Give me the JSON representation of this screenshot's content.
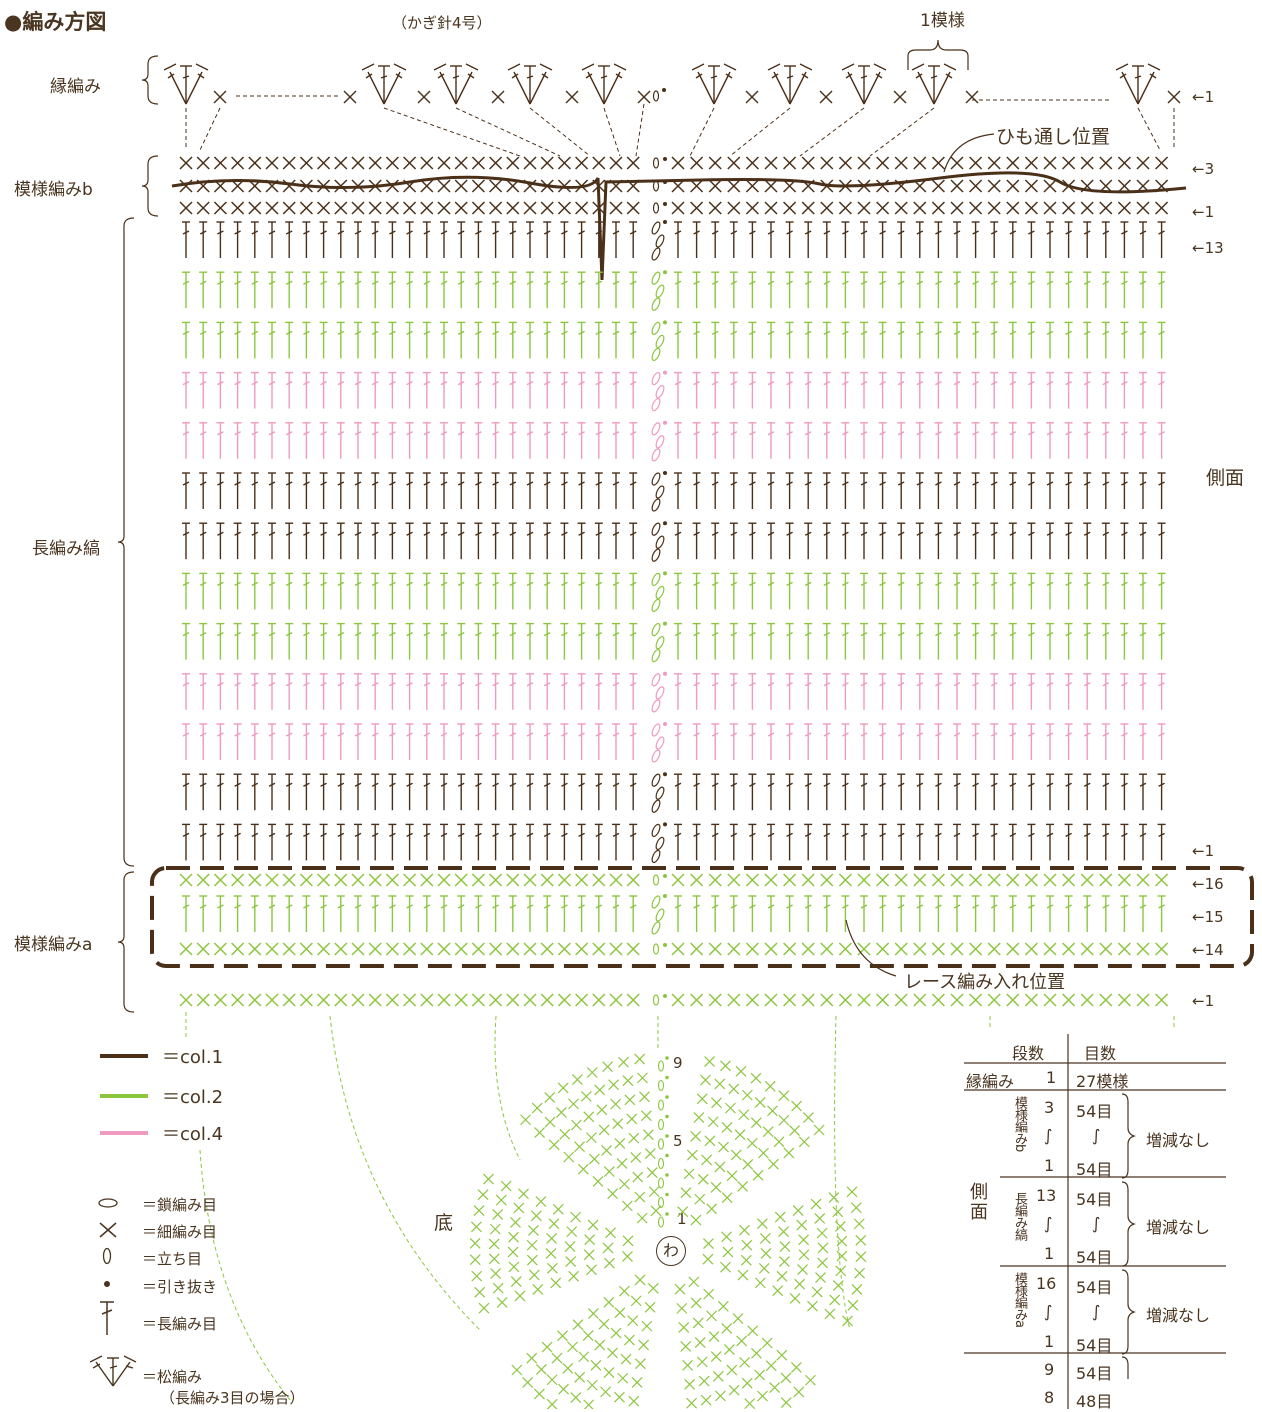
{
  "header": {
    "title": "●編み方図",
    "hook_note": "（かぎ針4号）",
    "repeat_label": "1模様"
  },
  "sections": {
    "edging": "縁編み",
    "pattern_b": "模様編みb",
    "dc_stripe": "長編み縞",
    "pattern_a": "模様編みa",
    "side": "側面",
    "bottom": "底"
  },
  "annotations": {
    "drawstring": "ひも通し位置",
    "lace_insert": "レース編み入れ位置"
  },
  "row_markers": {
    "edging_1": "←1",
    "b_3": "←3",
    "b_1": "←1",
    "dc_13": "←13",
    "dc_1": "←1",
    "a_16": "←16",
    "a_15": "←15",
    "a_14": "←14",
    "a_1": "←1"
  },
  "bottom_round_labels": {
    "r9": "9",
    "r5": "5",
    "r1": "1",
    "ring": "わ"
  },
  "colors": {
    "col1": "#4b3019",
    "col2": "#8cc63f",
    "col4": "#ef9ac0",
    "text": "#4a3520"
  },
  "legend": {
    "col1": "＝col.1",
    "col2": "＝col.2",
    "col4": "＝col.4"
  },
  "symbols": [
    {
      "icon": "chain-stitch-icon",
      "label": "＝鎖編み目"
    },
    {
      "icon": "single-crochet-icon",
      "label": "＝細編み目"
    },
    {
      "icon": "turning-chain-icon",
      "label": "＝立ち目"
    },
    {
      "icon": "slip-stitch-icon",
      "label": "＝引き抜き"
    },
    {
      "icon": "double-crochet-icon",
      "label": "＝長編み目"
    },
    {
      "icon": "shell-stitch-icon",
      "label": "＝松編み"
    }
  ],
  "shell_note": "（長編み3目の場合）",
  "count_table": {
    "header_rows": "段数",
    "header_stitches": "目数",
    "edging_row": {
      "name": "縁編み",
      "rows": "1",
      "stitches": "27模様"
    },
    "side_label": "側面",
    "groups": [
      {
        "name": "模様編みb",
        "rows": [
          "3",
          "∫",
          "1"
        ],
        "stitches": [
          "54目",
          "∫",
          "54目"
        ],
        "note": "増減なし"
      },
      {
        "name": "長編み縞",
        "rows": [
          "13",
          "∫",
          "1"
        ],
        "stitches": [
          "54目",
          "∫",
          "54目"
        ],
        "note": "増減なし"
      },
      {
        "name": "模様編みa",
        "rows": [
          "16",
          "∫",
          "1"
        ],
        "stitches": [
          "54目",
          "∫",
          "54目"
        ],
        "note": "増減なし"
      }
    ],
    "bottom_rows": [
      {
        "rows": "9",
        "stitches": "54目"
      },
      {
        "rows": "8",
        "stitches": "48目"
      }
    ]
  }
}
